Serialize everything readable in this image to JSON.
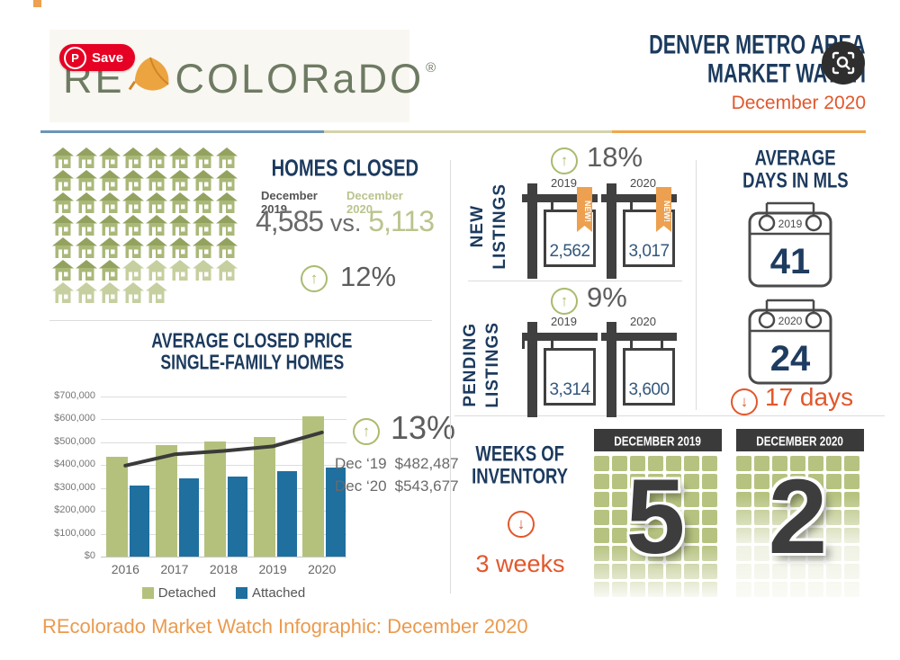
{
  "page": {
    "caption": "REcolorado Market Watch Infographic: December 2020",
    "save_button": {
      "label": "Save",
      "icon_letter": "P"
    }
  },
  "header": {
    "logo": {
      "re": "RE",
      "wordmark": "COLORaDO",
      "registered": "®"
    },
    "title_line1": "DENVER METRO AREA",
    "title_line2": "MARKET WATCH",
    "subtitle": "December 2020"
  },
  "icons": {
    "up_arrow": "↑",
    "down_arrow": "↓"
  },
  "homes_closed": {
    "title": "HOMES CLOSED",
    "label_2019": "December 2019",
    "label_2020": "December 2020",
    "value_2019": "4,585",
    "vs_label": "vs.",
    "value_2020": "5,113",
    "change": "12%",
    "house_count_solid": 43,
    "house_count_light": 10
  },
  "avg_price": {
    "title_line1": "AVERAGE CLOSED PRICE",
    "title_line2": "SINGLE-FAMILY HOMES",
    "change": "13%",
    "dec19_label": "Dec ‘19",
    "dec19_value": "$482,487",
    "dec20_label": "Dec ‘20",
    "dec20_value": "$543,677"
  },
  "chart_data": {
    "type": "bar",
    "title": "AVERAGE CLOSED PRICE SINGLE-FAMILY HOMES",
    "categories": [
      "2016",
      "2017",
      "2018",
      "2019",
      "2020"
    ],
    "series": [
      {
        "name": "Detached",
        "color": "#b4c17d",
        "values": [
          435000,
          487000,
          505000,
          522000,
          612000
        ]
      },
      {
        "name": "Attached",
        "color": "#1f6f9f",
        "values": [
          310000,
          342000,
          350000,
          373000,
          388000
        ]
      }
    ],
    "trend_line": {
      "color": "#3a3a3a",
      "values": [
        398000,
        447000,
        462000,
        482000,
        543000
      ]
    },
    "ylim": [
      0,
      700000
    ],
    "ytick_step": 100000,
    "ytick_labels": [
      "$0",
      "$100,000",
      "$200,000",
      "$300,000",
      "$400,000",
      "$500,000",
      "$600,000",
      "$700,000"
    ],
    "legend_position": "bottom",
    "grid": "horizontal"
  },
  "new_listings": {
    "label_line1": "NEW",
    "label_line2": "LISTINGS",
    "change": "18%",
    "ribbon": "NEW!",
    "sign_2019": {
      "year": "2019",
      "value": "2,562"
    },
    "sign_2020": {
      "year": "2020",
      "value": "3,017"
    }
  },
  "pending_listings": {
    "label_line1": "PENDING",
    "label_line2": "LISTINGS",
    "change": "9%",
    "sign_2019": {
      "year": "2019",
      "value": "3,314"
    },
    "sign_2020": {
      "year": "2020",
      "value": "3,600"
    }
  },
  "days_in_mls": {
    "title_line1": "AVERAGE",
    "title_line2": "DAYS IN MLS",
    "cal_2019": {
      "year": "2019",
      "value": "41"
    },
    "cal_2020": {
      "year": "2020",
      "value": "24"
    },
    "change": "17 days"
  },
  "inventory": {
    "title_line1": "WEEKS OF",
    "title_line2": "INVENTORY",
    "change": "3 weeks",
    "grid_cols": 7,
    "grid_rows": 8,
    "blocks": [
      {
        "header": "DECEMBER 2019",
        "value": "5"
      },
      {
        "header": "DECEMBER 2020",
        "value": "2"
      }
    ]
  }
}
